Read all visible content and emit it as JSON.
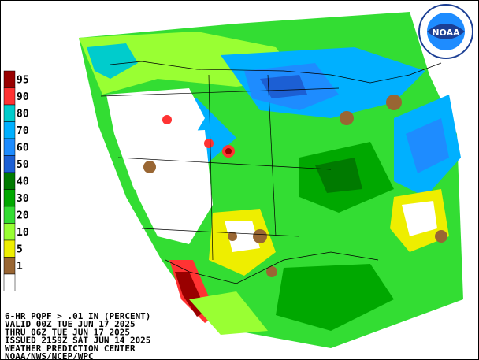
{
  "header": {
    "logo_text": "NOAA"
  },
  "legend": {
    "entries": [
      {
        "label": "95",
        "color": "#990000"
      },
      {
        "label": "90",
        "color": "#ff3333"
      },
      {
        "label": "80",
        "color": "#00cccc"
      },
      {
        "label": "70",
        "color": "#00b0ff"
      },
      {
        "label": "60",
        "color": "#1e8cff"
      },
      {
        "label": "50",
        "color": "#1c5fd4"
      },
      {
        "label": "40",
        "color": "#007a00"
      },
      {
        "label": "30",
        "color": "#00a800"
      },
      {
        "label": "20",
        "color": "#33dd33"
      },
      {
        "label": "10",
        "color": "#99ff33"
      },
      {
        "label": "5",
        "color": "#eeee00"
      },
      {
        "label": "1",
        "color": "#996633"
      }
    ],
    "bottom_color": "#ffffff"
  },
  "info": {
    "lines": [
      "6-HR PQPF > .01 IN (PERCENT)",
      "VALID 00Z TUE JUN 17 2025",
      "THRU 06Z TUE JUN 17 2025",
      "ISSUED 2159Z SAT JUN 14 2025",
      "WEATHER PREDICTION CENTER",
      "NOAA/NWS/NCEP/WPC"
    ]
  }
}
